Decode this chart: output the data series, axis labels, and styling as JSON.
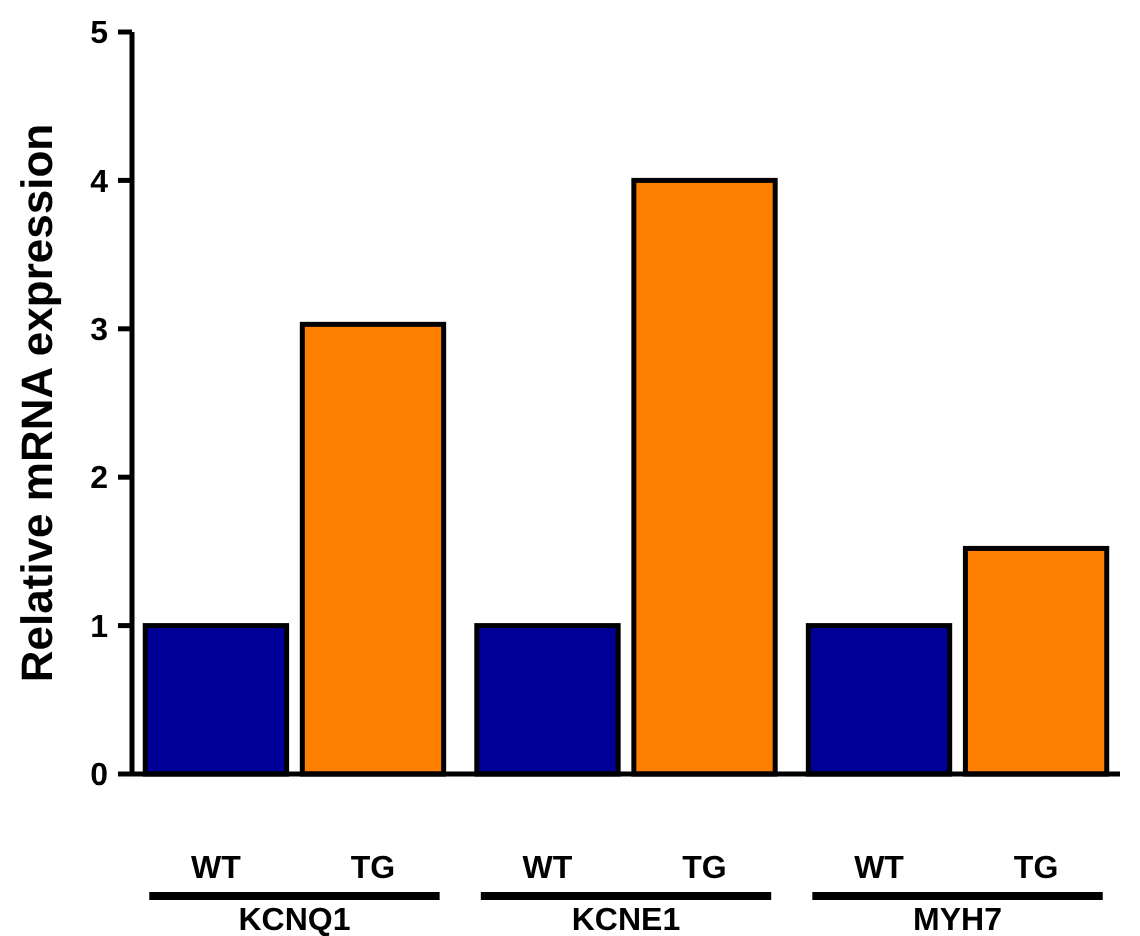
{
  "chart_data": {
    "type": "bar",
    "ylabel": "Relative mRNA expression",
    "categories": [
      "KCNQ1",
      "KCNE1",
      "MYH7"
    ],
    "series": [
      {
        "name": "WT",
        "color": "#000099",
        "values": [
          1,
          1,
          1
        ]
      },
      {
        "name": "TG",
        "color": "#ff8000",
        "values": [
          3.03,
          4.0,
          1.52
        ]
      }
    ],
    "ylim": [
      0,
      5
    ],
    "yticks": [
      0,
      1,
      2,
      3,
      4,
      5
    ],
    "grid": false,
    "legend": false
  }
}
